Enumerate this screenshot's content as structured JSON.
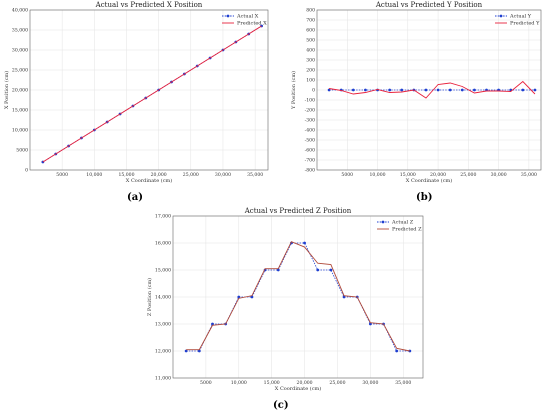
{
  "chart_data": [
    {
      "type": "line",
      "panel": "(a)",
      "title": "Actual vs Predicted X Position",
      "xlabel": "X Coordinate (cm)",
      "ylabel": "X Position (cm)",
      "xlim": [
        0,
        37000
      ],
      "ylim": [
        0,
        40000
      ],
      "xticks": [
        5000,
        10000,
        15000,
        20000,
        25000,
        30000,
        35000
      ],
      "xtick_labels": [
        "5000",
        "10,000",
        "15,000",
        "20,000",
        "25,000",
        "30,000",
        "35,000"
      ],
      "yticks": [
        0,
        5000,
        10000,
        15000,
        20000,
        25000,
        30000,
        35000,
        40000
      ],
      "ytick_labels": [
        "0",
        "5000",
        "10,000",
        "15,000",
        "20,000",
        "25,000",
        "30,000",
        "35,000",
        "40,000"
      ],
      "grid": true,
      "legend": "top-right",
      "x": [
        2000,
        4000,
        6000,
        8000,
        10000,
        12000,
        14000,
        16000,
        18000,
        20000,
        22000,
        24000,
        26000,
        28000,
        30000,
        32000,
        34000,
        36000
      ],
      "series": [
        {
          "name": "Actual X",
          "color": "#1f3fd0",
          "style": "dotted",
          "marker": "circle",
          "values": [
            2000,
            4000,
            6000,
            8000,
            10000,
            12000,
            14000,
            16000,
            18000,
            20000,
            22000,
            24000,
            26000,
            28000,
            30000,
            32000,
            34000,
            36000
          ]
        },
        {
          "name": "Predicted X",
          "color": "#e8213c",
          "style": "solid",
          "marker": "none",
          "values": [
            2000,
            4000,
            6000,
            8000,
            10000,
            12000,
            14000,
            16000,
            18000,
            20000,
            22000,
            24000,
            26000,
            28000,
            30000,
            32000,
            34000,
            36000
          ]
        }
      ]
    },
    {
      "type": "line",
      "panel": "(b)",
      "title": "Actual vs Predicted Y Position",
      "xlabel": "X Coordinate (cm)",
      "ylabel": "Y Position (cm)",
      "xlim": [
        0,
        37000
      ],
      "ylim": [
        -800,
        800
      ],
      "xticks": [
        5000,
        10000,
        15000,
        20000,
        25000,
        30000,
        35000
      ],
      "xtick_labels": [
        "5000",
        "10,000",
        "15,000",
        "20,000",
        "25,000",
        "30,000",
        "35,000"
      ],
      "yticks": [
        -800,
        -700,
        -600,
        -500,
        -400,
        -300,
        -200,
        -100,
        0,
        100,
        200,
        300,
        400,
        500,
        600,
        700,
        800
      ],
      "ytick_labels": [
        "-800",
        "-700",
        "-600",
        "-500",
        "-400",
        "-300",
        "-200",
        "-100",
        "0",
        "100",
        "200",
        "300",
        "400",
        "500",
        "600",
        "700",
        "800"
      ],
      "grid": true,
      "legend": "top-right",
      "x": [
        2000,
        4000,
        6000,
        8000,
        10000,
        12000,
        14000,
        16000,
        18000,
        20000,
        22000,
        24000,
        26000,
        28000,
        30000,
        32000,
        34000,
        36000
      ],
      "series": [
        {
          "name": "Actual Y",
          "color": "#1f3fd0",
          "style": "dotted",
          "marker": "circle",
          "values": [
            0,
            0,
            0,
            0,
            0,
            0,
            0,
            0,
            0,
            0,
            0,
            0,
            0,
            0,
            0,
            0,
            0,
            0
          ]
        },
        {
          "name": "Predicted Y",
          "color": "#e8213c",
          "style": "solid",
          "marker": "none",
          "values": [
            15,
            -5,
            -40,
            -25,
            5,
            -25,
            -20,
            0,
            -80,
            55,
            70,
            35,
            -30,
            -10,
            -10,
            -15,
            85,
            -40
          ]
        }
      ]
    },
    {
      "type": "line",
      "panel": "(c)",
      "title": "Actual vs Predicted Z Position",
      "xlabel": "X Coordinate (cm)",
      "ylabel": "Z Position (cm)",
      "xlim": [
        0,
        38000
      ],
      "ylim": [
        11000,
        17000
      ],
      "xticks": [
        5000,
        10000,
        15000,
        20000,
        25000,
        30000,
        35000
      ],
      "xtick_labels": [
        "5000",
        "10,000",
        "15,000",
        "20,000",
        "25,000",
        "30,000",
        "35,000"
      ],
      "yticks": [
        11000,
        12000,
        13000,
        14000,
        15000,
        16000,
        17000
      ],
      "ytick_labels": [
        "11,000",
        "12,000",
        "13,000",
        "14,000",
        "15,000",
        "16,000",
        "17,000"
      ],
      "grid": true,
      "legend": "top-right",
      "x": [
        2000,
        4000,
        6000,
        8000,
        10000,
        12000,
        14000,
        16000,
        18000,
        20000,
        22000,
        24000,
        26000,
        28000,
        30000,
        32000,
        34000,
        36000
      ],
      "series": [
        {
          "name": "Actual Z",
          "color": "#1f3fd0",
          "style": "dotted",
          "marker": "circle",
          "values": [
            12000,
            12000,
            13000,
            13000,
            14000,
            14000,
            15000,
            15000,
            16000,
            16000,
            15000,
            15000,
            14000,
            14000,
            13000,
            13000,
            12000,
            12000
          ]
        },
        {
          "name": "Predicted Z",
          "color": "#b04a3a",
          "style": "solid",
          "marker": "none",
          "values": [
            12050,
            12050,
            12950,
            13000,
            13950,
            14050,
            15050,
            15050,
            16050,
            15850,
            15250,
            15200,
            14050,
            14000,
            13050,
            13000,
            12100,
            12000
          ]
        }
      ]
    }
  ]
}
